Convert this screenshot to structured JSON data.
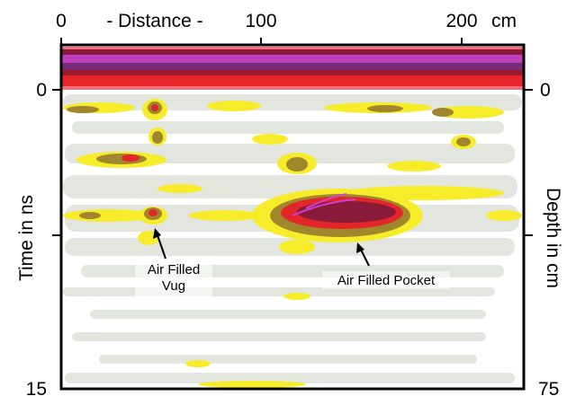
{
  "top_axis": {
    "ticks": [
      "0",
      "100",
      "200"
    ],
    "title": "- Distance -",
    "unit": "cm"
  },
  "left_axis": {
    "title": "Time in ns",
    "ticks": [
      "0",
      "15"
    ]
  },
  "right_axis": {
    "title": "Depth in cm",
    "ticks": [
      "0",
      "75"
    ]
  },
  "annotations": [
    {
      "lines": [
        "Air Filled",
        "Vug"
      ]
    },
    {
      "lines": [
        "Air Filled Pocket"
      ]
    }
  ]
}
